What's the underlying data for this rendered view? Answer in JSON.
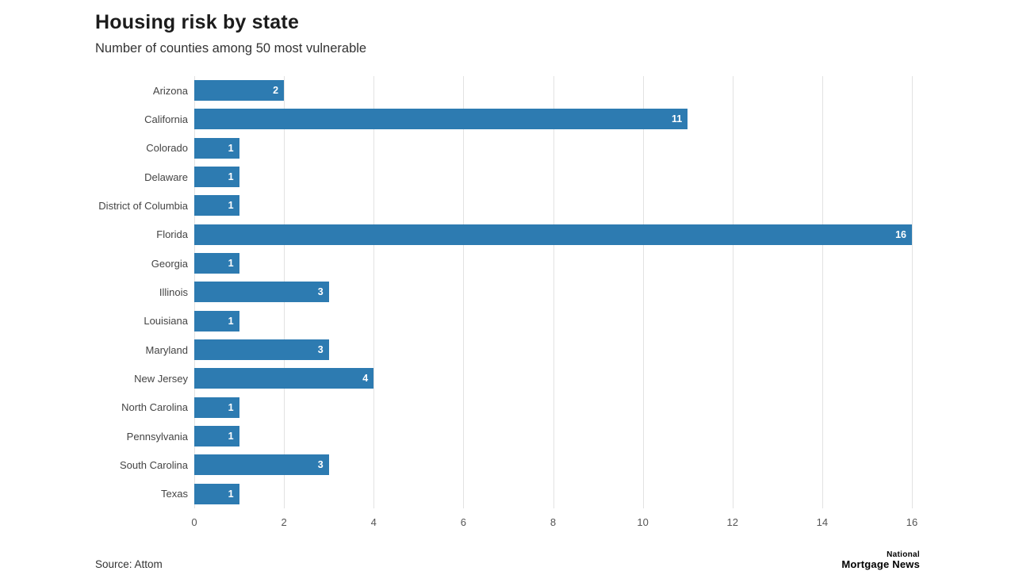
{
  "header": {
    "title": "Housing risk by state",
    "subtitle": "Number of counties among 50 most vulnerable"
  },
  "chart_data": {
    "type": "bar",
    "orientation": "horizontal",
    "title": "Housing risk by state",
    "subtitle": "Number of counties among 50 most vulnerable",
    "categories": [
      "Arizona",
      "California",
      "Colorado",
      "Delaware",
      "District of Columbia",
      "Florida",
      "Georgia",
      "Illinois",
      "Louisiana",
      "Maryland",
      "New Jersey",
      "North Carolina",
      "Pennsylvania",
      "South Carolina",
      "Texas"
    ],
    "values": [
      2,
      11,
      1,
      1,
      1,
      16,
      1,
      3,
      1,
      3,
      4,
      1,
      1,
      3,
      1
    ],
    "xlabel": "",
    "ylabel": "",
    "xlim": [
      0,
      16
    ],
    "xticks": [
      0,
      2,
      4,
      6,
      8,
      10,
      12,
      14,
      16
    ],
    "grid": true,
    "legend": "none",
    "bar_color": "#2d7bb1",
    "value_label_color": "#ffffff"
  },
  "footer": {
    "source": "Source: Attom",
    "logo_line1": "National",
    "logo_line2": "Mortgage News"
  }
}
